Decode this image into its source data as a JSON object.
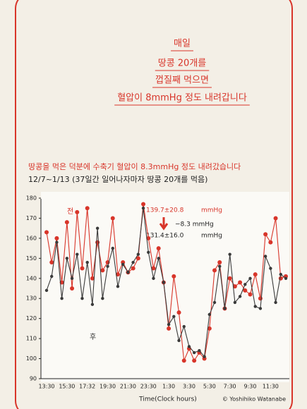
{
  "chart_data": {
    "type": "line",
    "title_lines": [
      "매일",
      "땅콩 20개를",
      "껍질째 먹으면",
      "혈압이 8mmHg 정도 내려갑니다"
    ],
    "subtitle": "땅콩을 먹은 덕분에 수축기 혈압이 8.3mmHg 정도 내려갔습니다",
    "note": "12/7~1/13 (37일간 일어나자마자 땅콩 20개를 먹음)",
    "x_label": "Time(Clock hours)",
    "credit": "© Yoshihiko Watanabe",
    "annotations": [
      "139.7±20.8",
      "mmHg",
      "−8.3 mmHg",
      "131.4±16.0",
      "mmHg"
    ],
    "categories": [
      "13:30",
      null,
      null,
      null,
      "15:30",
      null,
      null,
      null,
      "17:32",
      null,
      null,
      null,
      "19:30",
      null,
      null,
      null,
      "21:30",
      null,
      null,
      null,
      "23:30",
      null,
      null,
      null,
      "1:30",
      null,
      null,
      null,
      "3:30",
      null,
      null,
      null,
      "5:30",
      null,
      null,
      null,
      "7:30",
      null,
      null,
      null,
      "9:30",
      null,
      null,
      null,
      "11:30",
      null,
      null,
      null
    ],
    "series": [
      {
        "name": "전",
        "color": "#d8352a",
        "values": [
          163,
          148,
          160,
          138,
          168,
          135,
          173,
          145,
          175,
          140,
          158,
          144,
          148,
          170,
          142,
          148,
          143,
          145,
          150,
          177,
          160,
          145,
          155,
          138,
          115,
          141,
          123,
          99,
          105,
          99,
          103,
          100,
          115,
          144,
          148,
          125,
          140,
          136,
          138,
          134,
          132,
          142,
          130,
          162,
          158,
          170,
          140,
          141
        ]
      },
      {
        "name": "후",
        "color": "#3a3a3a",
        "values": [
          134,
          141,
          158,
          130,
          150,
          140,
          152,
          130,
          148,
          127,
          165,
          130,
          146,
          155,
          136,
          147,
          143,
          148,
          152,
          175,
          153,
          140,
          150,
          138,
          117,
          121,
          109,
          116,
          106,
          103,
          104,
          101,
          122,
          128,
          146,
          125,
          152,
          128,
          131,
          137,
          140,
          126,
          125,
          151,
          145,
          128,
          142,
          140
        ]
      }
    ],
    "ylim": [
      90,
      180
    ],
    "yticks": [
      90,
      100,
      110,
      120,
      130,
      140,
      150,
      160,
      170,
      180
    ],
    "grid": false
  }
}
